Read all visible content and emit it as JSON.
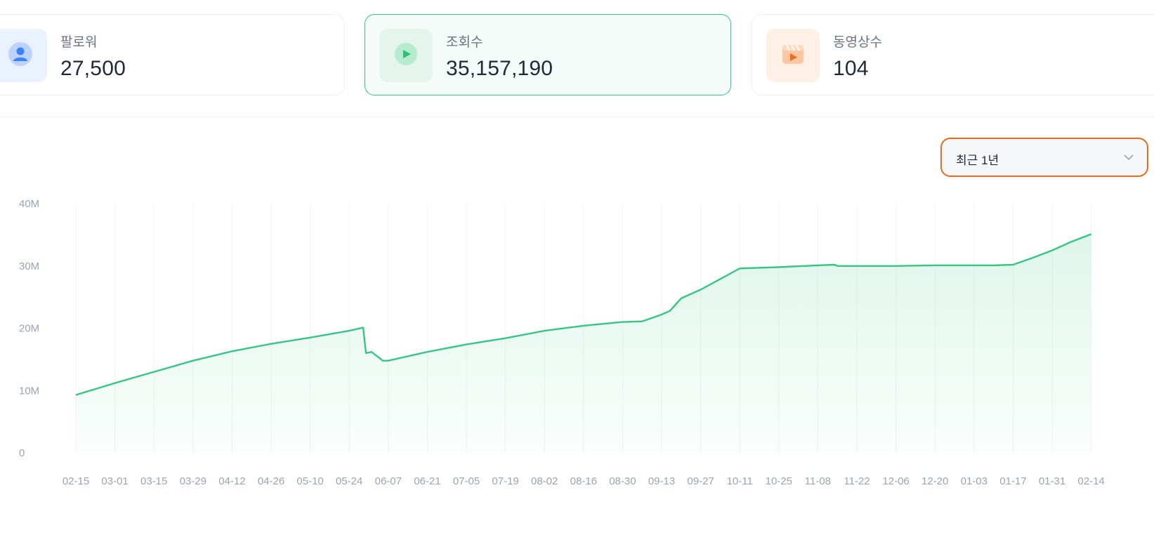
{
  "stats": [
    {
      "label": "팔로워",
      "value": "27,500",
      "icon": "user-icon"
    },
    {
      "label": "조회수",
      "value": "35,157,190",
      "icon": "play-icon"
    },
    {
      "label": "동영상수",
      "value": "104",
      "icon": "video-clip-icon"
    }
  ],
  "range_select": {
    "selected": "최근 1년"
  },
  "colors": {
    "accent": "#34c784",
    "select_border": "#ea6a1f"
  },
  "chart_data": {
    "type": "area",
    "title": "",
    "xlabel": "",
    "ylabel": "",
    "y_ticks": [
      "0",
      "10M",
      "20M",
      "30M",
      "40M"
    ],
    "ylim": [
      0,
      40000000
    ],
    "grid": true,
    "x_ticks": [
      "02-15",
      "03-01",
      "03-15",
      "03-29",
      "04-12",
      "04-26",
      "05-10",
      "05-24",
      "06-07",
      "06-21",
      "07-05",
      "07-19",
      "08-02",
      "08-16",
      "08-30",
      "09-13",
      "09-27",
      "10-11",
      "10-25",
      "11-08",
      "11-22",
      "12-06",
      "12-20",
      "01-03",
      "01-17",
      "01-31",
      "02-14"
    ],
    "series": [
      {
        "color": "#34c784",
        "x": [
          "02-15",
          "03-01",
          "03-15",
          "03-29",
          "04-12",
          "04-26",
          "05-10",
          "05-24",
          "05-29",
          "05-30",
          "06-01",
          "06-05",
          "06-07",
          "06-21",
          "07-05",
          "07-19",
          "08-02",
          "08-16",
          "08-30",
          "09-06",
          "09-13",
          "09-16",
          "09-20",
          "09-27",
          "10-04",
          "10-11",
          "10-25",
          "11-08",
          "11-14",
          "11-15",
          "11-22",
          "12-06",
          "12-20",
          "01-03",
          "01-10",
          "01-17",
          "01-24",
          "01-31",
          "02-07",
          "02-14"
        ],
        "values": [
          9300000,
          11200000,
          13000000,
          14800000,
          16300000,
          17500000,
          18500000,
          19600000,
          20100000,
          16000000,
          16200000,
          14800000,
          14800000,
          16200000,
          17400000,
          18400000,
          19600000,
          20400000,
          21000000,
          21100000,
          22200000,
          22800000,
          24800000,
          26200000,
          27900000,
          29600000,
          29800000,
          30100000,
          30200000,
          30000000,
          30000000,
          30000000,
          30100000,
          30100000,
          30100000,
          30200000,
          31300000,
          32500000,
          33900000,
          35100000
        ]
      }
    ]
  }
}
